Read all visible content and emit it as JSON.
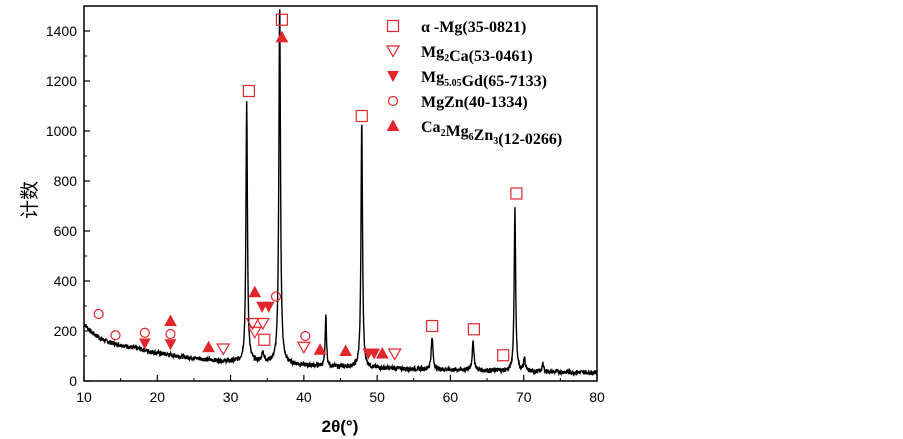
{
  "chart_data": {
    "type": "line",
    "title": "",
    "xlabel": "2θ(°)",
    "ylabel": "计数",
    "xlim": [
      10,
      80
    ],
    "ylim": [
      0,
      1500
    ],
    "xticks": [
      "10",
      "20",
      "30",
      "40",
      "50",
      "60",
      "70",
      "80"
    ],
    "yticks": [
      "0",
      "200",
      "400",
      "600",
      "800",
      "1000",
      "1200",
      "1400"
    ],
    "legend_position": "top-right",
    "legend": [
      {
        "marker": "square-open",
        "label": "α -Mg(35-0821)"
      },
      {
        "marker": "triangle-down-open",
        "label": "Mg2Ca(53-0461)",
        "parts": [
          "Mg",
          "2",
          "Ca(53-0461)"
        ]
      },
      {
        "marker": "triangle-down-filled",
        "label": "Mg5.05Gd(65-7133)",
        "parts": [
          "Mg",
          "5.05",
          "Gd(65-7133)"
        ]
      },
      {
        "marker": "circle-open",
        "label": "MgZn(40-1334)"
      },
      {
        "marker": "triangle-up-filled",
        "label": "Ca2Mg6Zn3(12-0266)",
        "parts": [
          "Ca",
          "2",
          "Mg",
          "6",
          "Zn",
          "3",
          "(12-0266)"
        ]
      }
    ],
    "baseline": [
      [
        10,
        230
      ],
      [
        11,
        195
      ],
      [
        12,
        175
      ],
      [
        13,
        160
      ],
      [
        14,
        150
      ],
      [
        16,
        138
      ],
      [
        18,
        125
      ],
      [
        20,
        112
      ],
      [
        22,
        103
      ],
      [
        24,
        95
      ],
      [
        26,
        88
      ],
      [
        28,
        82
      ],
      [
        30,
        78
      ],
      [
        32,
        78
      ],
      [
        34,
        76
      ],
      [
        36,
        74
      ],
      [
        38,
        68
      ],
      [
        40,
        63
      ],
      [
        45,
        57
      ],
      [
        50,
        52
      ],
      [
        55,
        48
      ],
      [
        60,
        45
      ],
      [
        65,
        42
      ],
      [
        70,
        38
      ],
      [
        75,
        36
      ],
      [
        80,
        34
      ]
    ],
    "peaks": [
      {
        "x": 32.2,
        "height": 1040,
        "width": 0.12
      },
      {
        "x": 34.4,
        "height": 40,
        "width": 0.15
      },
      {
        "x": 36.7,
        "height": 1440,
        "width": 0.13
      },
      {
        "x": 43.0,
        "height": 205,
        "width": 0.1
      },
      {
        "x": 47.9,
        "height": 990,
        "width": 0.12
      },
      {
        "x": 57.5,
        "height": 125,
        "width": 0.15
      },
      {
        "x": 63.1,
        "height": 112,
        "width": 0.15
      },
      {
        "x": 68.8,
        "height": 650,
        "width": 0.12
      },
      {
        "x": 70.1,
        "height": 55,
        "width": 0.12
      },
      {
        "x": 72.6,
        "height": 30,
        "width": 0.15
      }
    ],
    "markers": [
      {
        "type": "square-open",
        "x": 32.5,
        "y": 1160
      },
      {
        "type": "square-open",
        "x": 37.0,
        "y": 1445
      },
      {
        "type": "square-open",
        "x": 47.9,
        "y": 1060
      },
      {
        "type": "square-open",
        "x": 57.5,
        "y": 220
      },
      {
        "type": "square-open",
        "x": 63.2,
        "y": 207
      },
      {
        "type": "square-open",
        "x": 67.2,
        "y": 103
      },
      {
        "type": "square-open",
        "x": 69.0,
        "y": 750
      },
      {
        "type": "square-open",
        "x": 34.6,
        "y": 165
      },
      {
        "type": "triangle-up-filled",
        "x": 37.0,
        "y": 1375
      },
      {
        "type": "triangle-up-filled",
        "x": 21.8,
        "y": 240
      },
      {
        "type": "triangle-up-filled",
        "x": 27.0,
        "y": 135
      },
      {
        "type": "triangle-up-filled",
        "x": 33.3,
        "y": 355
      },
      {
        "type": "triangle-up-filled",
        "x": 42.2,
        "y": 125
      },
      {
        "type": "triangle-up-filled",
        "x": 45.7,
        "y": 120
      },
      {
        "type": "triangle-up-filled",
        "x": 50.7,
        "y": 110
      },
      {
        "type": "triangle-down-filled",
        "x": 18.3,
        "y": 150
      },
      {
        "type": "triangle-down-filled",
        "x": 21.8,
        "y": 147
      },
      {
        "type": "triangle-down-filled",
        "x": 34.3,
        "y": 297
      },
      {
        "type": "triangle-down-filled",
        "x": 35.2,
        "y": 297
      },
      {
        "type": "triangle-down-filled",
        "x": 48.8,
        "y": 110
      },
      {
        "type": "triangle-down-filled",
        "x": 49.6,
        "y": 110
      },
      {
        "type": "triangle-down-open",
        "x": 29.0,
        "y": 128
      },
      {
        "type": "triangle-down-open",
        "x": 33.0,
        "y": 230
      },
      {
        "type": "triangle-down-open",
        "x": 33.3,
        "y": 195
      },
      {
        "type": "triangle-down-open",
        "x": 34.4,
        "y": 230
      },
      {
        "type": "triangle-down-open",
        "x": 40.0,
        "y": 135
      },
      {
        "type": "triangle-down-open",
        "x": 52.4,
        "y": 108
      },
      {
        "type": "circle-open",
        "x": 12.0,
        "y": 268
      },
      {
        "type": "circle-open",
        "x": 14.3,
        "y": 183
      },
      {
        "type": "circle-open",
        "x": 18.3,
        "y": 193
      },
      {
        "type": "circle-open",
        "x": 21.8,
        "y": 188
      },
      {
        "type": "circle-open",
        "x": 36.2,
        "y": 338
      },
      {
        "type": "circle-open",
        "x": 40.2,
        "y": 180
      }
    ]
  }
}
